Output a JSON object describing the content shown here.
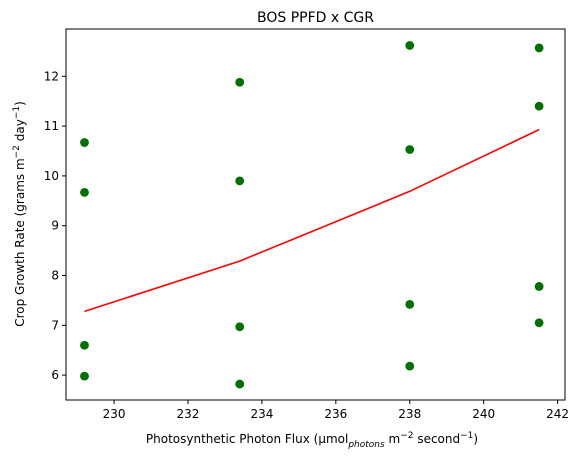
{
  "chart_data": {
    "type": "scatter",
    "title": "BOS PPFD x CGR",
    "xlabel": {
      "prefix": "Photosynthetic Photon Flux (µmol",
      "sub": "photons",
      "mid": " m",
      "sup1": "−2",
      "mid2": " second",
      "sup2": "−1",
      "suffix": ")"
    },
    "ylabel": {
      "prefix": "Crop Growth Rate (grams m",
      "sup1": "−2",
      "mid": " day",
      "sup2": "−1",
      "suffix": ")"
    },
    "xlim": [
      228.7,
      242.2
    ],
    "ylim": [
      5.5,
      12.95
    ],
    "xticks": [
      230,
      232,
      234,
      236,
      238,
      240,
      242
    ],
    "yticks": [
      6,
      7,
      8,
      9,
      10,
      11,
      12
    ],
    "grid": false,
    "points": {
      "color": "#007000",
      "data": [
        {
          "x": 229.2,
          "y": 10.67
        },
        {
          "x": 229.2,
          "y": 9.67
        },
        {
          "x": 229.2,
          "y": 6.6
        },
        {
          "x": 229.2,
          "y": 5.98
        },
        {
          "x": 233.4,
          "y": 11.88
        },
        {
          "x": 233.4,
          "y": 9.9
        },
        {
          "x": 233.4,
          "y": 6.97
        },
        {
          "x": 233.4,
          "y": 5.82
        },
        {
          "x": 238.0,
          "y": 12.62
        },
        {
          "x": 238.0,
          "y": 10.53
        },
        {
          "x": 238.0,
          "y": 7.42
        },
        {
          "x": 238.0,
          "y": 6.18
        },
        {
          "x": 241.5,
          "y": 12.57
        },
        {
          "x": 241.5,
          "y": 11.4
        },
        {
          "x": 241.5,
          "y": 7.78
        },
        {
          "x": 241.5,
          "y": 7.05
        }
      ]
    },
    "line": {
      "color": "#ff0000",
      "data": [
        {
          "x": 229.2,
          "y": 7.28
        },
        {
          "x": 233.4,
          "y": 8.29
        },
        {
          "x": 238.0,
          "y": 9.69
        },
        {
          "x": 241.5,
          "y": 10.93
        }
      ]
    }
  }
}
